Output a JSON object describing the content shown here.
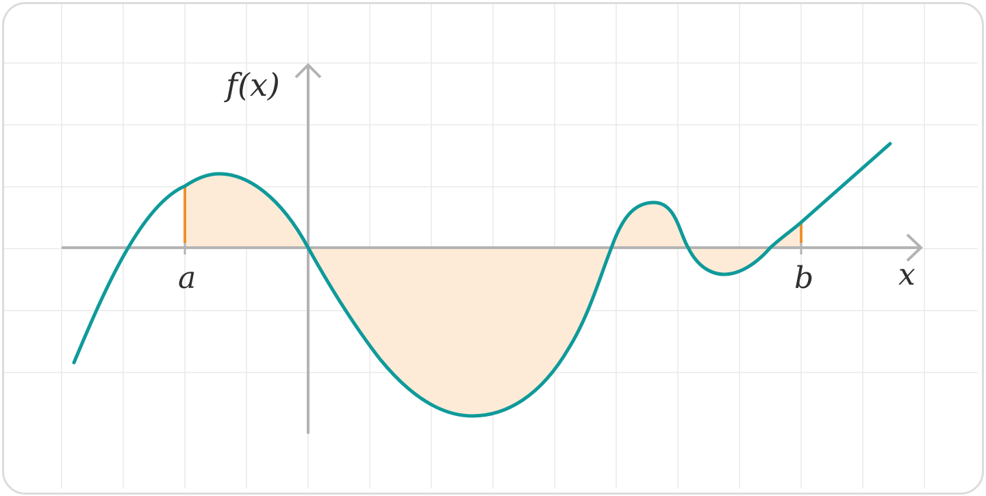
{
  "labels": {
    "y_axis": "f(x)",
    "x_axis": "x",
    "a": "a",
    "b": "b"
  },
  "colors": {
    "background": "#ffffff",
    "border": "#dcdcdc",
    "grid": "#e9e9e9",
    "axis": "#b3b3b3",
    "curve": "#0f9a9a",
    "area_fill": "#fdebd7",
    "bound_marker": "#f0902a",
    "text": "#2f2f2f"
  }
}
